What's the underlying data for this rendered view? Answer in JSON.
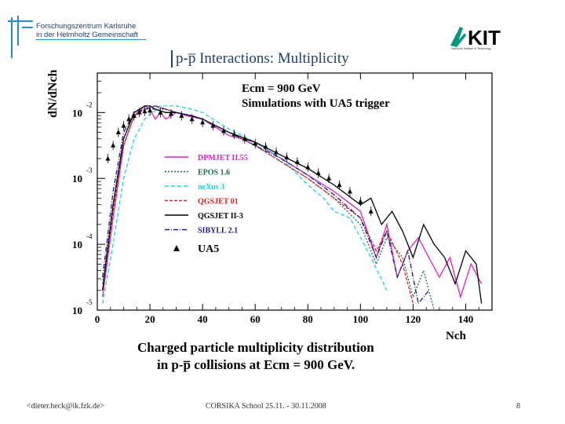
{
  "header": {
    "institute_line1": "Forschungszentrum Karlsruhe",
    "institute_line2": "in der Helmholtz Gemeinschaft",
    "kit_logo_text": "KIT",
    "kit_subtitle": "Karlsruhe Institute of Technology"
  },
  "slide": {
    "title": "p-p̅ Interactions: Multiplicity"
  },
  "caption": {
    "line1": "Charged particle multiplicity distribution",
    "line2": "in p-p̅ collisions at Ecm = 900 GeV."
  },
  "footer": {
    "email": "<dieter.heck@ik.fzk.de>",
    "conference": "CORSIKA School 25.11. - 30.11.2008",
    "page": "8"
  },
  "colors": {
    "dpmjet": "#e020c0",
    "epos": "#1a6a4a",
    "nexus": "#20d0e0",
    "qgsjet01": "#e02020",
    "qgsjet2": "#000000",
    "sibyll": "#1a1a8a"
  },
  "chart_data": {
    "type": "line",
    "title": "",
    "annotation_line1": "Ecm = 900 GeV",
    "annotation_line2": "Simulations with UA5 trigger",
    "xlabel": "Nch",
    "ylabel": "dN/dNch",
    "xlim": [
      0,
      150
    ],
    "ylim": [
      -5,
      -1.4
    ],
    "yscale": "log10",
    "x_ticks": [
      "0",
      "20",
      "40",
      "60",
      "80",
      "100",
      "120",
      "140"
    ],
    "y_ticks": [
      {
        "base": "10",
        "exp": "-2",
        "log": -2
      },
      {
        "base": "10",
        "exp": "-3",
        "log": -3
      },
      {
        "base": "10",
        "exp": "-4",
        "log": -4
      },
      {
        "base": "10",
        "exp": "-5",
        "log": -5
      }
    ],
    "series": [
      {
        "name": "DPMJET II.55",
        "color_key": "dpmjet",
        "dash": "",
        "x": [
          2,
          6,
          10,
          14,
          18,
          20,
          22,
          24,
          26,
          30,
          34,
          40,
          50,
          60,
          70,
          80,
          90,
          100,
          106,
          110,
          114,
          118,
          122,
          126,
          130,
          134,
          138,
          142,
          146
        ],
        "logy": [
          -4.8,
          -3.6,
          -2.5,
          -2.05,
          -1.9,
          -1.95,
          -2.1,
          -2.0,
          -2.1,
          -2.0,
          -2.05,
          -2.1,
          -2.35,
          -2.45,
          -2.7,
          -2.95,
          -3.2,
          -3.5,
          -4.2,
          -3.7,
          -4.5,
          -4.1,
          -3.9,
          -4.2,
          -4.5,
          -4.2,
          -4.8,
          -4.3,
          -4.6
        ]
      },
      {
        "name": "EPOS 1.6",
        "color_key": "epos",
        "dash": "2,2",
        "x": [
          2,
          6,
          10,
          14,
          18,
          22,
          26,
          30,
          36,
          40,
          50,
          60,
          70,
          80,
          90,
          100,
          106,
          110,
          116,
          120,
          124,
          128
        ],
        "logy": [
          -4.6,
          -3.4,
          -2.5,
          -2.05,
          -1.95,
          -1.95,
          -1.95,
          -2.0,
          -2.05,
          -2.1,
          -2.3,
          -2.5,
          -2.75,
          -3.0,
          -3.3,
          -3.7,
          -4.3,
          -3.9,
          -4.2,
          -4.8,
          -4.4,
          -5.0
        ]
      },
      {
        "name": "neXus 3",
        "color_key": "nexus",
        "dash": "5,3",
        "x": [
          2,
          6,
          10,
          14,
          18,
          24,
          30,
          36,
          40,
          50,
          60,
          70,
          80,
          86,
          90,
          96,
          100,
          104,
          110
        ],
        "logy": [
          -4.9,
          -4.0,
          -3.0,
          -2.4,
          -2.1,
          -1.9,
          -1.9,
          -1.95,
          -2.0,
          -2.25,
          -2.45,
          -2.7,
          -3.1,
          -3.3,
          -3.5,
          -3.6,
          -3.9,
          -4.2,
          -4.7
        ]
      },
      {
        "name": "QGSJET 01",
        "color_key": "qgsjet01",
        "dash": "4,2",
        "x": [
          2,
          6,
          10,
          14,
          18,
          22,
          26,
          30,
          36,
          40,
          50,
          60,
          70,
          80,
          90,
          100,
          106,
          110,
          116,
          120
        ],
        "logy": [
          -4.7,
          -3.5,
          -2.5,
          -2.05,
          -1.95,
          -1.9,
          -1.95,
          -2.0,
          -2.05,
          -2.1,
          -2.3,
          -2.5,
          -2.75,
          -3.0,
          -3.3,
          -3.6,
          -4.1,
          -3.8,
          -4.3,
          -4.9
        ]
      },
      {
        "name": "QGSJET II-3",
        "color_key": "qgsjet2",
        "dash": "",
        "x": [
          2,
          6,
          10,
          14,
          18,
          20,
          22,
          26,
          30,
          36,
          40,
          50,
          60,
          70,
          80,
          90,
          100,
          104,
          108,
          112,
          116,
          120,
          124,
          128,
          132,
          136,
          140,
          144,
          146
        ],
        "logy": [
          -4.7,
          -3.4,
          -2.4,
          -2.0,
          -1.9,
          -1.9,
          -1.95,
          -2.0,
          -2.0,
          -2.05,
          -2.1,
          -2.3,
          -2.45,
          -2.65,
          -2.85,
          -3.1,
          -3.4,
          -3.3,
          -3.7,
          -3.5,
          -3.8,
          -4.2,
          -3.7,
          -4.0,
          -4.2,
          -4.6,
          -4.1,
          -4.3,
          -4.9
        ]
      },
      {
        "name": "SIBYLL 2.1",
        "color_key": "sibyll",
        "dash": "6,2,1,2",
        "x": [
          2,
          6,
          10,
          14,
          18,
          22,
          26,
          30,
          36,
          40,
          50,
          60,
          70,
          80,
          90,
          100,
          106,
          110,
          114,
          118,
          122,
          126
        ],
        "logy": [
          -4.5,
          -3.2,
          -2.3,
          -2.0,
          -1.95,
          -1.9,
          -1.95,
          -2.0,
          -2.05,
          -2.1,
          -2.3,
          -2.5,
          -2.7,
          -2.95,
          -3.25,
          -3.6,
          -4.2,
          -3.8,
          -4.5,
          -4.1,
          -4.9,
          -4.7
        ]
      }
    ],
    "ua5": {
      "name": "UA5",
      "x": [
        4,
        6,
        8,
        10,
        12,
        14,
        16,
        18,
        20,
        24,
        28,
        32,
        36,
        40,
        44,
        48,
        52,
        56,
        60,
        64,
        68,
        72,
        76,
        80,
        84,
        88,
        92,
        96,
        100,
        104
      ],
      "logy": [
        -2.7,
        -2.5,
        -2.3,
        -2.2,
        -2.1,
        -2.05,
        -2.0,
        -1.98,
        -1.97,
        -2.0,
        -2.02,
        -2.05,
        -2.1,
        -2.15,
        -2.2,
        -2.28,
        -2.33,
        -2.4,
        -2.47,
        -2.52,
        -2.6,
        -2.68,
        -2.75,
        -2.83,
        -2.92,
        -3.0,
        -3.1,
        -3.2,
        -3.35,
        -3.5
      ]
    }
  }
}
